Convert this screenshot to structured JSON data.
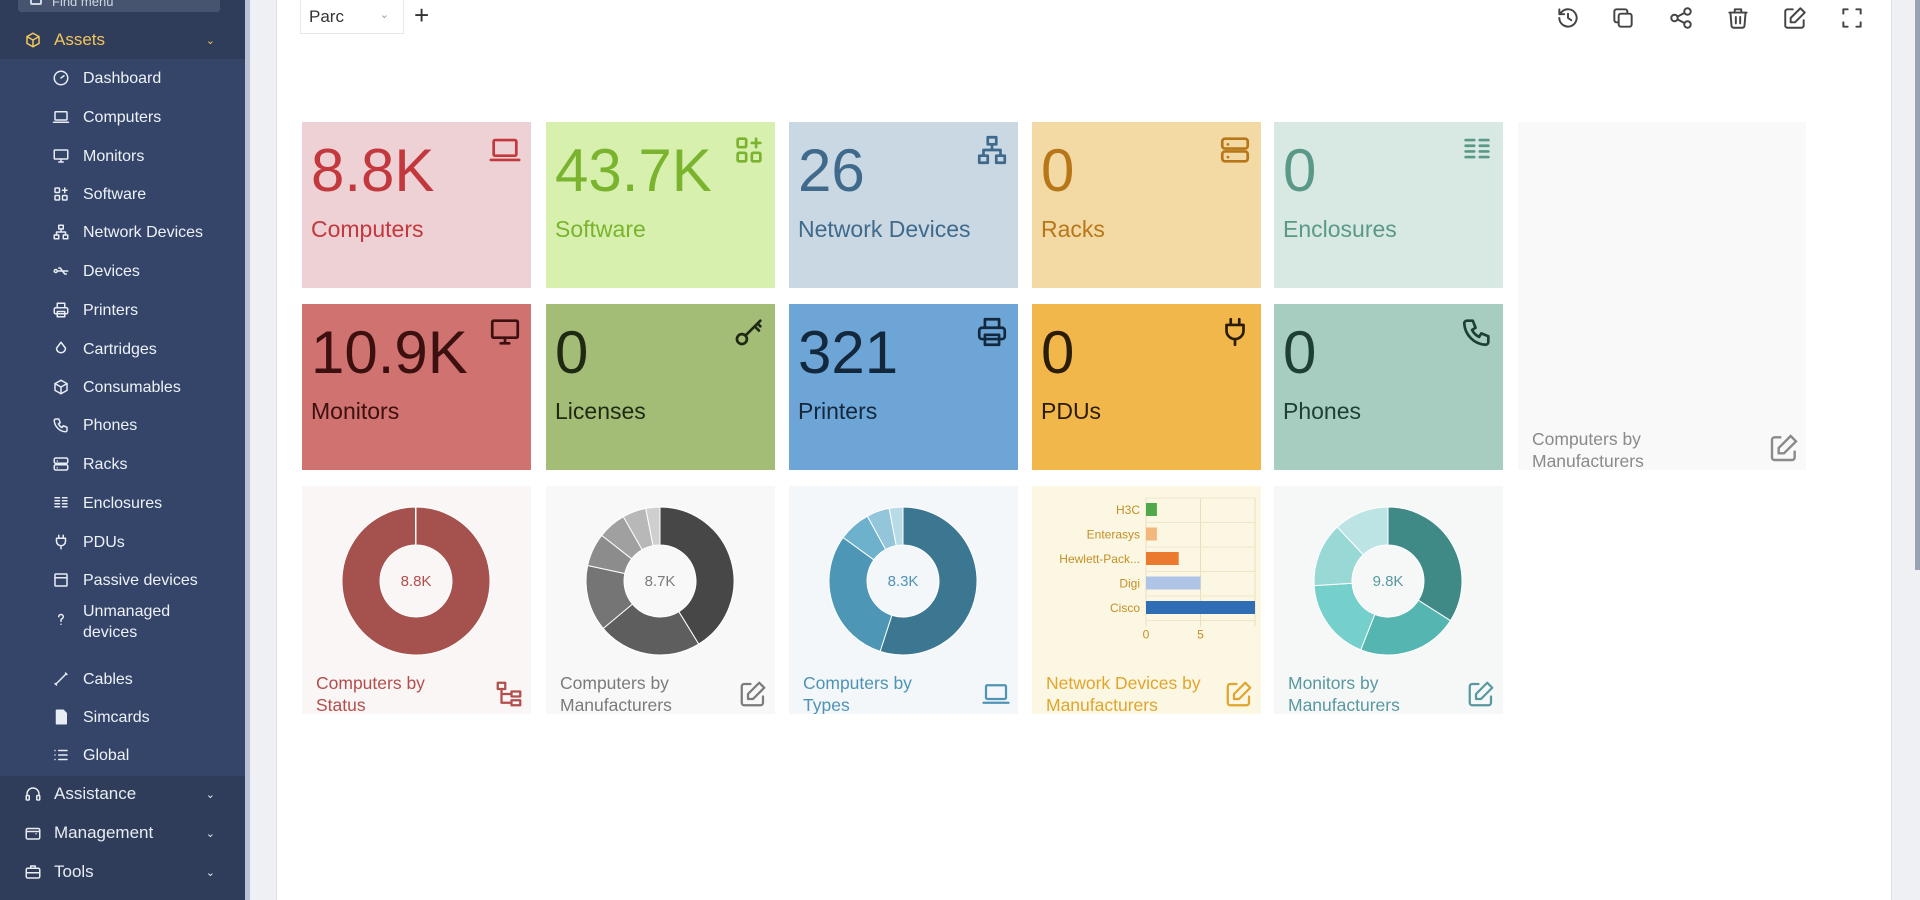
{
  "sidebar": {
    "find_menu": "Find menu",
    "assets": {
      "label": "Assets",
      "color": "#f3c55b"
    },
    "items": [
      {
        "label": "Dashboard",
        "icon": "gauge-icon"
      },
      {
        "label": "Computers",
        "icon": "laptop-icon"
      },
      {
        "label": "Monitors",
        "icon": "monitor-icon"
      },
      {
        "label": "Software",
        "icon": "apps-icon"
      },
      {
        "label": "Network Devices",
        "icon": "network-icon"
      },
      {
        "label": "Devices",
        "icon": "usb-icon"
      },
      {
        "label": "Printers",
        "icon": "printer-icon"
      },
      {
        "label": "Cartridges",
        "icon": "droplet-icon"
      },
      {
        "label": "Consumables",
        "icon": "package-icon"
      },
      {
        "label": "Phones",
        "icon": "phone-icon"
      },
      {
        "label": "Racks",
        "icon": "server-icon"
      },
      {
        "label": "Enclosures",
        "icon": "columns-icon"
      },
      {
        "label": "PDUs",
        "icon": "plug-icon"
      },
      {
        "label": "Passive devices",
        "icon": "box-icon"
      },
      {
        "label": "Unmanaged devices",
        "icon": "question-icon"
      },
      {
        "label": "Cables",
        "icon": "cable-icon"
      },
      {
        "label": "Simcards",
        "icon": "simcard-icon"
      },
      {
        "label": "Global",
        "icon": "list-icon"
      }
    ],
    "bottom": [
      {
        "label": "Assistance",
        "icon": "headset-icon"
      },
      {
        "label": "Management",
        "icon": "wallet-icon"
      },
      {
        "label": "Tools",
        "icon": "briefcase-icon"
      }
    ]
  },
  "header": {
    "dashboard_select": "Parc",
    "add_label": "+",
    "toolbar": [
      "history-icon",
      "copy-icon",
      "share-icon",
      "trash-icon",
      "edit-icon",
      "fullscreen-icon"
    ]
  },
  "cards": [
    {
      "value": "8.8K",
      "label": "Computers",
      "bg": "#eed1d4",
      "fg": "#c2383d",
      "icon": "laptop-icon"
    },
    {
      "value": "43.7K",
      "label": "Software",
      "bg": "#d7f0ae",
      "fg": "#7ab32e",
      "icon": "apps-icon"
    },
    {
      "value": "26",
      "label": "Network Devices",
      "bg": "#c9d8e3",
      "fg": "#3f6a8c",
      "icon": "network-icon"
    },
    {
      "value": "0",
      "label": "Racks",
      "bg": "#f3d9a4",
      "fg": "#b77718",
      "icon": "server-icon"
    },
    {
      "value": "0",
      "label": "Enclosures",
      "bg": "#d8e8e2",
      "fg": "#5a9988",
      "icon": "columns-icon"
    },
    {
      "value": "10.9K",
      "label": "Monitors",
      "bg": "#d0726f",
      "fg": "#3d1010",
      "icon": "monitor-icon"
    },
    {
      "value": "0",
      "label": "Licenses",
      "bg": "#a3bd77",
      "fg": "#202a12",
      "icon": "key-icon"
    },
    {
      "value": "321",
      "label": "Printers",
      "bg": "#6da6d6",
      "fg": "#13283d",
      "icon": "printer-icon"
    },
    {
      "value": "0",
      "label": "PDUs",
      "bg": "#f2b74b",
      "fg": "#2b1c05",
      "icon": "plug-icon"
    },
    {
      "value": "0",
      "label": "Phones",
      "bg": "#a7ccc0",
      "fg": "#1e3f35",
      "icon": "phone-icon"
    }
  ],
  "empty_card": {
    "title": "Computers by Manufacturers",
    "icon": "edit-icon"
  },
  "chart_cards": [
    {
      "title": "Computers by Status",
      "bg": "#f9f6f5",
      "fg": "#b24e4c",
      "icon": "hierarchy-icon"
    },
    {
      "title": "Computers by Manufacturers",
      "bg": "#f8f8f8",
      "fg": "#7b7b7b",
      "icon": "edit-icon"
    },
    {
      "title": "Computers by Types",
      "bg": "#f3f7f9",
      "fg": "#4f93b5",
      "icon": "laptop-icon"
    },
    {
      "title": "Network Devices by Manufacturers",
      "bg": "#fcf7e3",
      "fg": "#e0a52d",
      "icon": "edit-icon"
    },
    {
      "title": "Monitors by Manufacturers",
      "bg": "#f6f8f8",
      "fg": "#5a98a0",
      "icon": "edit-icon"
    }
  ],
  "chart_data": [
    {
      "type": "pie",
      "donut": true,
      "center_label": "8.8K",
      "slice_colors": [
        "#a5524f",
        "#e0c4c3"
      ],
      "values": [
        8790,
        10
      ]
    },
    {
      "type": "pie",
      "donut": true,
      "center_label": "8.7K",
      "slice_colors": [
        "#474747",
        "#5e5e5e",
        "#757575",
        "#8c8c8c",
        "#a0a0a0",
        "#b8b8b8",
        "#cfcfcf"
      ],
      "values": [
        40,
        22,
        14,
        7,
        6,
        5,
        3
      ]
    },
    {
      "type": "pie",
      "donut": true,
      "center_label": "8.3K",
      "slice_colors": [
        "#3c7791",
        "#4d96b5",
        "#6eb1cc",
        "#93c6da",
        "#b9dbe8"
      ],
      "values": [
        55,
        30,
        7,
        5,
        3
      ]
    },
    {
      "type": "bar",
      "orientation": "horizontal",
      "categories": [
        "H3C",
        "Enterasys",
        "Hewlett-Pack...",
        "Digi",
        "Cisco"
      ],
      "values": [
        1,
        1,
        3,
        5,
        10
      ],
      "bar_colors": [
        "#4fa84a",
        "#f3b77c",
        "#ec7a2e",
        "#aec5e8",
        "#2f6db5"
      ],
      "xticks": [
        0,
        5
      ],
      "xlim": [
        0,
        10
      ]
    },
    {
      "type": "pie",
      "donut": true,
      "center_label": "9.8K",
      "slice_colors": [
        "#3f8a86",
        "#55b5b0",
        "#75d0cb",
        "#98d9d5",
        "#bde4e4"
      ],
      "values": [
        34,
        22,
        18,
        14,
        12
      ]
    }
  ]
}
